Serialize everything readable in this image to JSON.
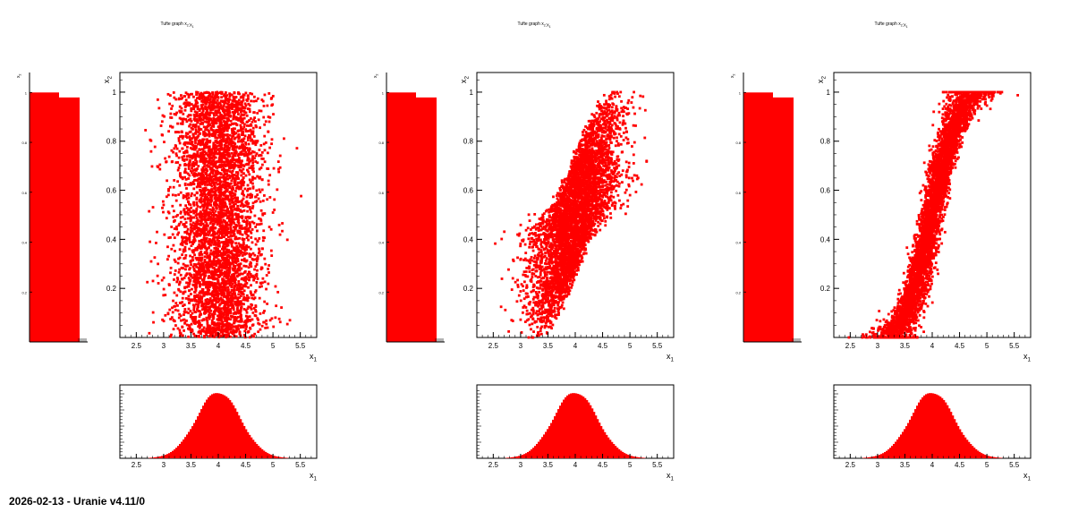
{
  "footer": "2026-02-13 - Uranie v4.11/0",
  "colors": {
    "marker": "#ff0000",
    "fill": "#ff0000",
    "axis": "#000000",
    "background": "#ffffff"
  },
  "chart_data": [
    {
      "type": "scatter",
      "title": "Tufte graph x_{2}:x_{1}",
      "xlabel": "x_{1}",
      "ylabel": "x_{2}",
      "xlim": [
        2.2,
        5.8
      ],
      "ylim": [
        0,
        1.08
      ],
      "xticks": [
        "2.5",
        "3",
        "3.5",
        "4",
        "4.5",
        "5",
        "5.5"
      ],
      "yticks": [
        "0.2",
        "0.4",
        "0.6",
        "0.8",
        "1"
      ],
      "x_distribution": {
        "mean": 4.0,
        "std": 0.4
      },
      "y_relation": "uniform",
      "side_histogram": {
        "ylabel": "x_{2}",
        "yticks": [
          "0.2",
          "0.4",
          "0.6",
          "0.8",
          "1"
        ],
        "bins": [
          1.0,
          0.98
        ]
      },
      "bottom_histogram": {
        "xlabel": "x_{1}",
        "xticks": [
          "2.5",
          "3",
          "3.5",
          "4",
          "4.5",
          "5",
          "5.5"
        ],
        "mean": 4.0,
        "std": 0.4
      }
    },
    {
      "type": "scatter",
      "title": "Tufte graph x_{2}:x_{1}",
      "xlabel": "x_{1}",
      "ylabel": "x_{2}",
      "xlim": [
        2.2,
        5.8
      ],
      "ylim": [
        0,
        1.08
      ],
      "xticks": [
        "2.5",
        "3",
        "3.5",
        "4",
        "4.5",
        "5",
        "5.5"
      ],
      "yticks": [
        "0.2",
        "0.4",
        "0.6",
        "0.8",
        "1"
      ],
      "x_distribution": {
        "mean": 4.0,
        "std": 0.4
      },
      "y_relation": "weak-positive",
      "side_histogram": {
        "ylabel": "x_{2}",
        "yticks": [
          "0.2",
          "0.4",
          "0.6",
          "0.8",
          "1"
        ],
        "bins": [
          1.0,
          0.98
        ]
      },
      "bottom_histogram": {
        "xlabel": "x_{1}",
        "xticks": [
          "2.5",
          "3",
          "3.5",
          "4",
          "4.5",
          "5",
          "5.5"
        ],
        "mean": 4.0,
        "std": 0.4
      }
    },
    {
      "type": "scatter",
      "title": "Tufte graph x_{2}:x_{1}",
      "xlabel": "x_{1}",
      "ylabel": "x_{2}",
      "xlim": [
        2.2,
        5.8
      ],
      "ylim": [
        0,
        1.08
      ],
      "xticks": [
        "2.5",
        "3",
        "3.5",
        "4",
        "4.5",
        "5",
        "5.5"
      ],
      "yticks": [
        "0.2",
        "0.4",
        "0.6",
        "0.8",
        "1"
      ],
      "x_distribution": {
        "mean": 4.0,
        "std": 0.4
      },
      "y_relation": "rank-sigmoid",
      "side_histogram": {
        "ylabel": "x_{2}",
        "yticks": [
          "0.2",
          "0.4",
          "0.6",
          "0.8",
          "1"
        ],
        "bins": [
          1.0,
          0.98
        ]
      },
      "bottom_histogram": {
        "xlabel": "x_{1}",
        "xticks": [
          "2.5",
          "3",
          "3.5",
          "4",
          "4.5",
          "5",
          "5.5"
        ],
        "mean": 4.0,
        "std": 0.4
      }
    }
  ]
}
